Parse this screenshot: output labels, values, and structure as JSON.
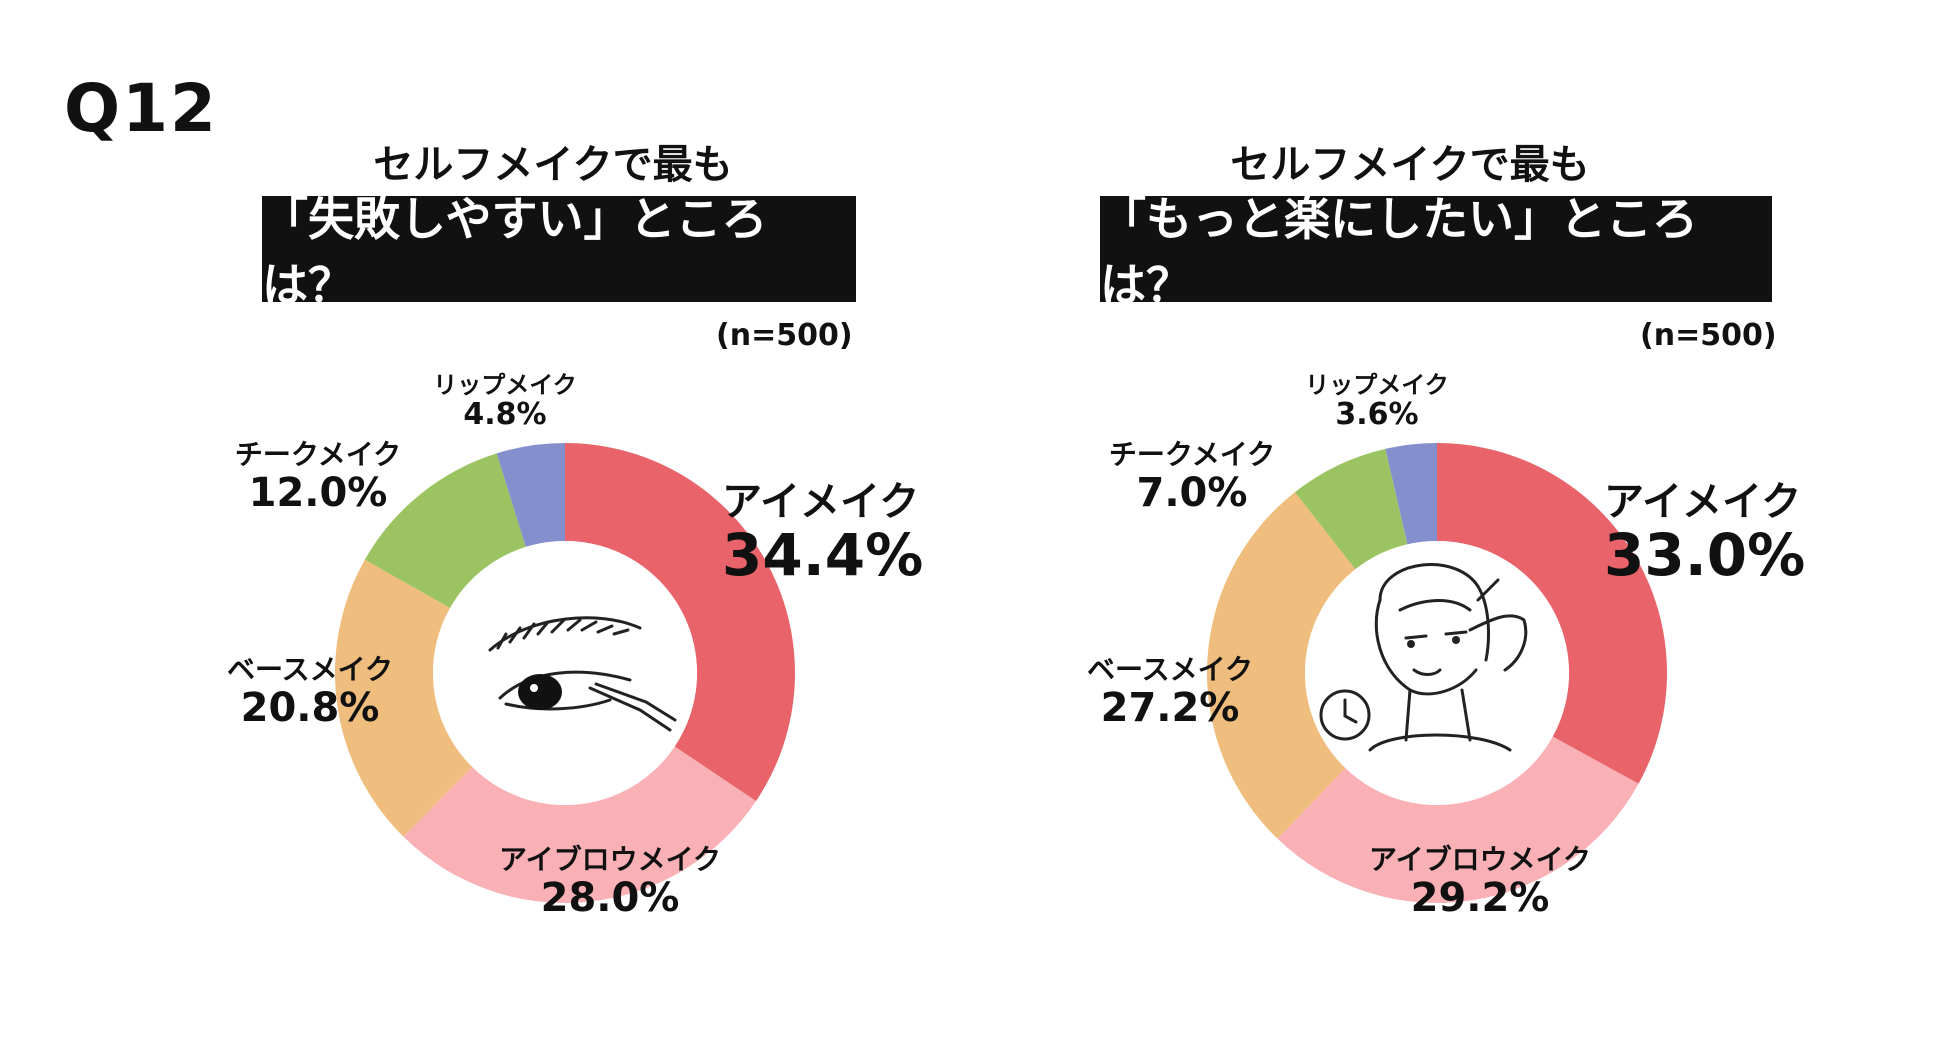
{
  "question_label": "Q12",
  "chart_data": [
    {
      "type": "pie",
      "subtitle": "セルフメイクで最も",
      "title": "「失敗しやすい」ところは？",
      "sample_size": "(n=500)",
      "categories": [
        "アイメイク",
        "アイブロウメイク",
        "ベースメイク",
        "チークメイク",
        "リップメイク"
      ],
      "values": [
        34.4,
        28.0,
        20.8,
        12.0,
        4.8
      ],
      "value_labels": [
        "34.4%",
        "28.0%",
        "20.8%",
        "12.0%",
        "4.8%"
      ],
      "colors": [
        "#E8646A",
        "#F9B1B6",
        "#EFBD7D",
        "#9CC361",
        "#8490CD"
      ],
      "center_illustration": "eye-with-eyeliner"
    },
    {
      "type": "pie",
      "subtitle": "セルフメイクで最も",
      "title": "「もっと楽にしたい」ところは？",
      "sample_size": "(n=500)",
      "categories": [
        "アイメイク",
        "アイブロウメイク",
        "ベースメイク",
        "チークメイク",
        "リップメイク"
      ],
      "values": [
        33.0,
        29.2,
        27.2,
        7.0,
        3.6
      ],
      "value_labels": [
        "33.0%",
        "29.2%",
        "27.2%",
        "7.0%",
        "3.6%"
      ],
      "colors": [
        "#E8646A",
        "#F9B1B6",
        "#EFBD7D",
        "#9CC361",
        "#8490CD"
      ],
      "center_illustration": "woman-with-clock"
    }
  ]
}
